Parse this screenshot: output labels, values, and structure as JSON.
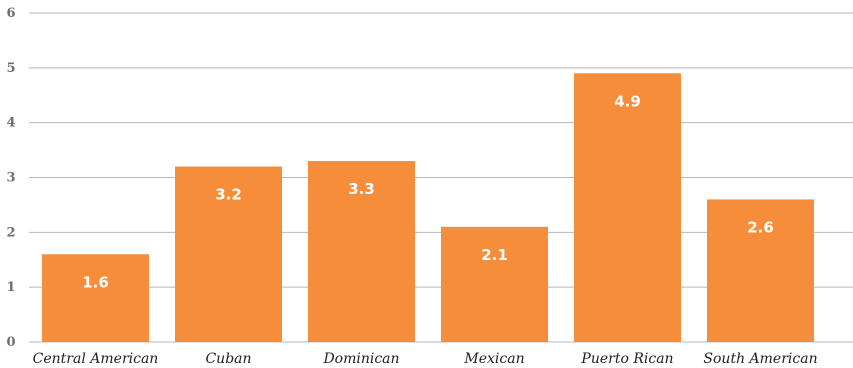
{
  "chart_data": {
    "type": "bar",
    "categories": [
      "Central American",
      "Cuban",
      "Dominican",
      "Mexican",
      "Puerto Rican",
      "South American"
    ],
    "values": [
      1.6,
      3.2,
      3.3,
      2.1,
      4.9,
      2.6
    ],
    "data_labels": [
      "1.6",
      "3.2",
      "3.3",
      "2.1",
      "4.9",
      "2.6"
    ],
    "yticks": [
      "0",
      "1",
      "2",
      "3",
      "4",
      "5",
      "6"
    ],
    "ylim": [
      0,
      6
    ],
    "grid": true,
    "bar_color": "#f58d3a",
    "grid_color": "#b8b8b8"
  }
}
